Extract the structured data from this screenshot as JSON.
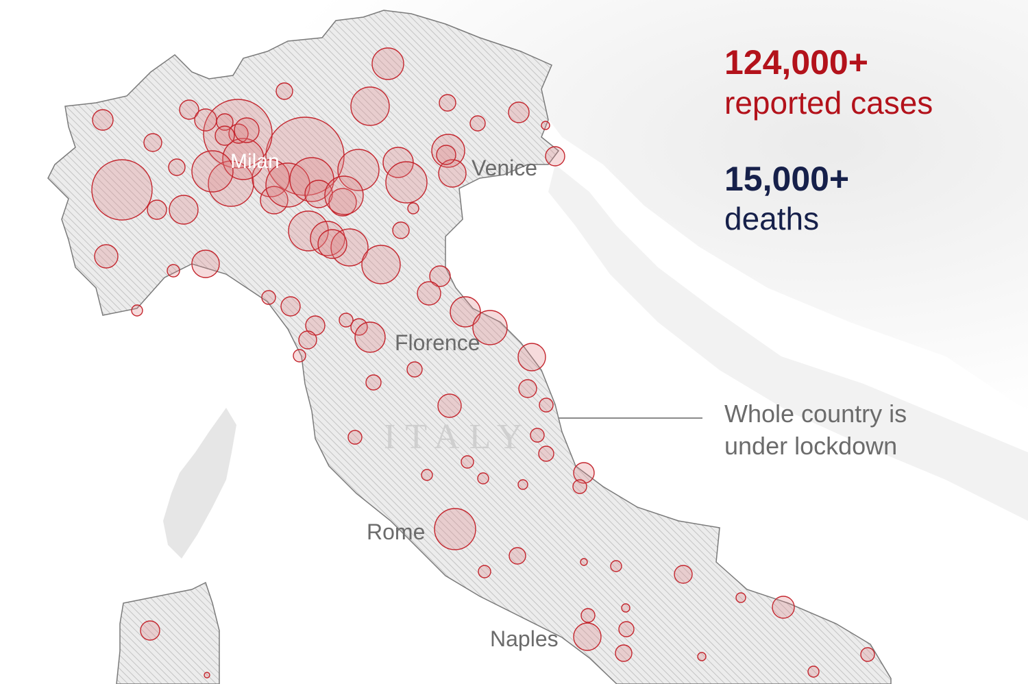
{
  "stats": {
    "cases_number": "124,000+",
    "cases_caption": "reported cases",
    "deaths_number": "15,000+",
    "deaths_caption": "deaths"
  },
  "colors": {
    "cases": "#b3121b",
    "deaths": "#16204a",
    "circle_stroke": "#c4262e",
    "circle_fill": "#e07c80",
    "country_fill": "#ececec",
    "hatch": "#c9c9c9",
    "background_land": "#f0f0f0"
  },
  "map": {
    "country_label": "ITALY",
    "cities": {
      "milan": "Milan",
      "venice": "Venice",
      "florence": "Florence",
      "rome": "Rome",
      "naples": "Naples"
    },
    "annotation": {
      "line1": "Whole country is",
      "line2": "under lockdown"
    }
  }
}
